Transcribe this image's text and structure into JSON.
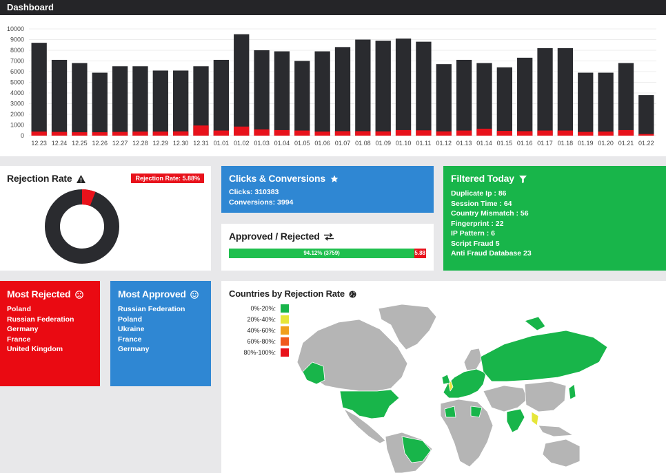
{
  "header": {
    "title": "Dashboard"
  },
  "chart_data": {
    "type": "bar",
    "stacked": true,
    "categories": [
      "12.23",
      "12.24",
      "12.25",
      "12.26",
      "12.27",
      "12.28",
      "12.29",
      "12.30",
      "12.31",
      "01.01",
      "01.02",
      "01.03",
      "01.04",
      "01.05",
      "01.06",
      "01.07",
      "01.08",
      "01.09",
      "01.10",
      "01.11",
      "01.12",
      "01.13",
      "01.14",
      "01.15",
      "01.16",
      "01.17",
      "01.18",
      "01.19",
      "01.20",
      "01.21",
      "01.22"
    ],
    "series": [
      {
        "values": [
          8700,
          7100,
          6800,
          5900,
          6500,
          6500,
          6100,
          6100,
          6500,
          7100,
          9500,
          8000,
          7900,
          7000,
          7900,
          8300,
          9000,
          8900,
          9100,
          8800,
          6700,
          7100,
          6800,
          6400,
          7300,
          8200,
          8200,
          5900,
          5900,
          6800,
          3800
        ],
        "color": "#2a2b2f"
      },
      {
        "values": [
          380,
          350,
          320,
          320,
          350,
          380,
          380,
          400,
          950,
          480,
          850,
          580,
          520,
          480,
          380,
          420,
          420,
          400,
          520,
          500,
          400,
          480,
          650,
          450,
          420,
          480,
          480,
          350,
          380,
          520,
          150
        ],
        "color": "#e8121b"
      }
    ],
    "yticks": [
      0,
      1000,
      2000,
      3000,
      4000,
      5000,
      6000,
      7000,
      8000,
      9000,
      10000
    ],
    "ylim": [
      0,
      10000
    ],
    "grid": true
  },
  "rejection": {
    "title": "Rejection Rate",
    "badge": "Rejection Rate: 5.88%",
    "rejected_fraction": 0.0588,
    "colors": {
      "rejected": "#e8121b",
      "approved": "#2a2b2f"
    }
  },
  "clicks": {
    "title": "Clicks & Conversions",
    "lines": [
      "Clicks: 310383",
      "Conversions: 3994"
    ]
  },
  "approved_rejected": {
    "title": "Approved / Rejected",
    "approved_label": "94.12% (3759)",
    "approved_fraction": 0.9412,
    "rejected_label": "5.88"
  },
  "filtered": {
    "title": "Filtered Today",
    "lines": [
      "Duplicate Ip : 86",
      "Session Time : 64",
      "Country Mismatch : 56",
      "Fingerprint : 22",
      "IP Pattern : 6",
      "Script Fraud 5",
      "Anti Fraud Database 23"
    ]
  },
  "most_rejected": {
    "title": "Most Rejected",
    "items": [
      "Poland",
      "Russian Federation",
      "Germany",
      "France",
      "United Kingdom"
    ]
  },
  "most_approved": {
    "title": "Most Approved",
    "items": [
      "Russian Federation",
      "Poland",
      "Ukraine",
      "France",
      "Germany"
    ]
  },
  "countries": {
    "title": "Countries by Rejection Rate",
    "legend": [
      {
        "label": "0%-20%:",
        "color": "#18b54a"
      },
      {
        "label": "20%-40%:",
        "color": "#e6e63a"
      },
      {
        "label": "40%-60%:",
        "color": "#f0a01e"
      },
      {
        "label": "60%-80%:",
        "color": "#f05a1e"
      },
      {
        "label": "80%-100%:",
        "color": "#e8121b"
      }
    ]
  }
}
